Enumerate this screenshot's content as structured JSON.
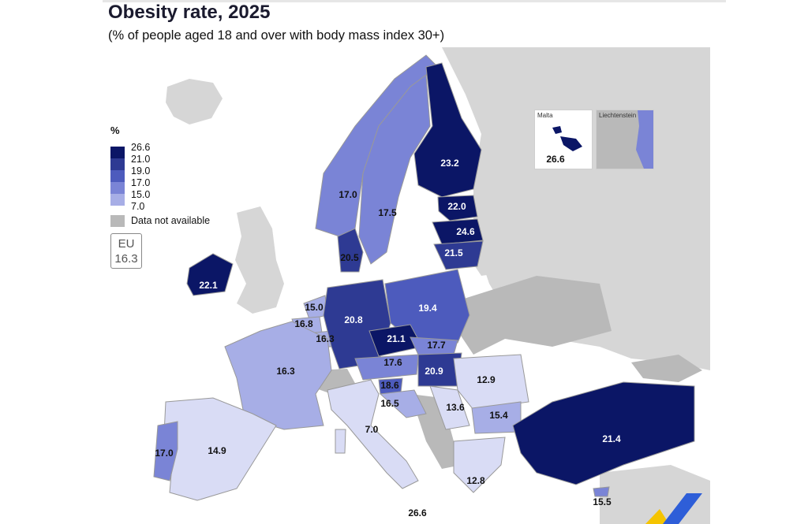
{
  "title": "Obesity rate, 2025",
  "subtitle": "(% of people aged 18 and over with body mass index 30+)",
  "legend": {
    "unit": "%",
    "breaks": [
      "26.6",
      "21.0",
      "19.0",
      "17.0",
      "15.0",
      "7.0"
    ],
    "colors": [
      "#0b1666",
      "#2e3a93",
      "#4d5bbd",
      "#7a84d6",
      "#a7aee6",
      "#d9dcf5"
    ],
    "na_label": "Data not available",
    "na_color": "#b9b9b9"
  },
  "eu": {
    "label": "EU",
    "value": "16.3"
  },
  "insets": {
    "malta_title": "Malta",
    "malta_value": "26.6",
    "liechtenstein_title": "Liechtenstein"
  },
  "map_values": {
    "ireland": "22.1",
    "portugal": "17.0",
    "spain": "14.9",
    "france": "16.3",
    "belgium": "16.8",
    "netherlands": "15.0",
    "luxembourg": "16.3",
    "germany": "20.8",
    "denmark": "20.5",
    "norway": "17.0",
    "sweden": "17.5",
    "finland": "23.2",
    "estonia": "22.0",
    "latvia": "24.6",
    "lithuania": "21.5",
    "poland": "19.4",
    "czechia": "21.1",
    "slovakia": "17.7",
    "austria": "17.6",
    "hungary": "20.9",
    "slovenia": "18.6",
    "croatia": "16.5",
    "italy": "7.0",
    "romania": "12.9",
    "serbia": "13.6",
    "bulgaria": "15.4",
    "turkey": "21.4",
    "greece": "12.8",
    "malta_bottom": "26.6",
    "cyprus": "15.5"
  }
}
